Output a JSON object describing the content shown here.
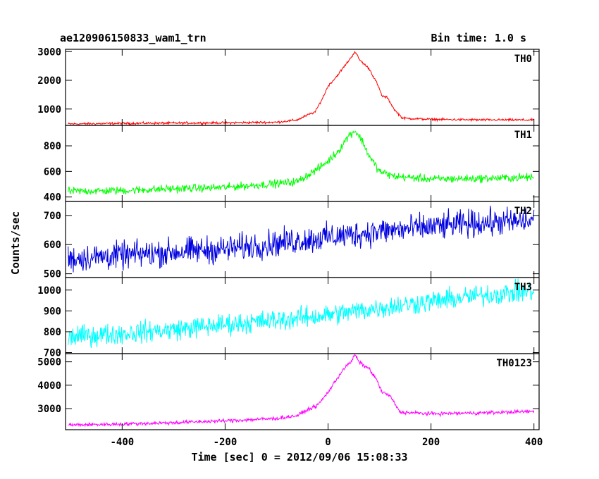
{
  "header": {
    "left": "ae120906150833_wam1_trn",
    "right": "Bin time: 1.0 s"
  },
  "chart_data": {
    "type": "line",
    "x_range": [
      -510,
      410
    ],
    "x_ticks": [
      -400,
      -200,
      0,
      200,
      400
    ],
    "xlabel": "Time [sec] 0 = 2012/09/06 15:08:33",
    "ylabel": "Counts/sec",
    "grid": false,
    "panels": [
      {
        "name": "TH0",
        "color": "#ff0000",
        "ylim": [
          430,
          3080
        ],
        "ticks": [
          1000,
          2000,
          3000
        ],
        "noise": 28,
        "points": [
          [
            -505,
            480
          ],
          [
            -400,
            500
          ],
          [
            -300,
            510
          ],
          [
            -200,
            520
          ],
          [
            -100,
            540
          ],
          [
            -60,
            620
          ],
          [
            -40,
            790
          ],
          [
            -25,
            900
          ],
          [
            -10,
            1400
          ],
          [
            0,
            1800
          ],
          [
            15,
            2100
          ],
          [
            30,
            2450
          ],
          [
            45,
            2800
          ],
          [
            52,
            3000
          ],
          [
            62,
            2700
          ],
          [
            80,
            2400
          ],
          [
            95,
            1900
          ],
          [
            105,
            1450
          ],
          [
            115,
            1400
          ],
          [
            130,
            950
          ],
          [
            145,
            680
          ],
          [
            200,
            640
          ],
          [
            300,
            620
          ],
          [
            400,
            620
          ]
        ]
      },
      {
        "name": "TH1",
        "color": "#00ff00",
        "ylim": [
          365,
          960
        ],
        "ticks": [
          400,
          600,
          800
        ],
        "noise": 22,
        "points": [
          [
            -505,
            445
          ],
          [
            -400,
            450
          ],
          [
            -300,
            465
          ],
          [
            -200,
            475
          ],
          [
            -100,
            505
          ],
          [
            -60,
            520
          ],
          [
            -40,
            570
          ],
          [
            -20,
            620
          ],
          [
            0,
            680
          ],
          [
            20,
            760
          ],
          [
            40,
            880
          ],
          [
            52,
            920
          ],
          [
            65,
            850
          ],
          [
            80,
            720
          ],
          [
            100,
            600
          ],
          [
            130,
            560
          ],
          [
            200,
            540
          ],
          [
            300,
            545
          ],
          [
            400,
            555
          ]
        ]
      },
      {
        "name": "TH2",
        "color": "#0000e0",
        "ylim": [
          487,
          748
        ],
        "ticks": [
          500,
          600,
          700
        ],
        "noise": 33,
        "points": [
          [
            -505,
            552
          ],
          [
            -400,
            562
          ],
          [
            -300,
            575
          ],
          [
            -200,
            585
          ],
          [
            -100,
            605
          ],
          [
            0,
            625
          ],
          [
            100,
            645
          ],
          [
            200,
            660
          ],
          [
            300,
            675
          ],
          [
            400,
            680
          ]
        ]
      },
      {
        "name": "TH3",
        "color": "#00ffff",
        "ylim": [
          695,
          1060
        ],
        "ticks": [
          700,
          800,
          900,
          1000
        ],
        "noise": 36,
        "points": [
          [
            -505,
            775
          ],
          [
            -400,
            792
          ],
          [
            -300,
            810
          ],
          [
            -200,
            835
          ],
          [
            -100,
            855
          ],
          [
            0,
            880
          ],
          [
            100,
            915
          ],
          [
            200,
            945
          ],
          [
            300,
            975
          ],
          [
            400,
            995
          ]
        ]
      },
      {
        "name": "TH0123",
        "color": "#ff00ff",
        "ylim": [
          2100,
          5350
        ],
        "ticks": [
          3000,
          4000,
          5000
        ],
        "noise": 55,
        "points": [
          [
            -505,
            2300
          ],
          [
            -400,
            2340
          ],
          [
            -300,
            2400
          ],
          [
            -200,
            2480
          ],
          [
            -100,
            2580
          ],
          [
            -60,
            2700
          ],
          [
            -40,
            2950
          ],
          [
            -20,
            3150
          ],
          [
            0,
            3700
          ],
          [
            15,
            4200
          ],
          [
            30,
            4700
          ],
          [
            45,
            5000
          ],
          [
            52,
            5300
          ],
          [
            62,
            4950
          ],
          [
            80,
            4700
          ],
          [
            95,
            4200
          ],
          [
            105,
            3700
          ],
          [
            120,
            3550
          ],
          [
            140,
            2850
          ],
          [
            200,
            2780
          ],
          [
            300,
            2820
          ],
          [
            400,
            2880
          ]
        ]
      }
    ]
  }
}
